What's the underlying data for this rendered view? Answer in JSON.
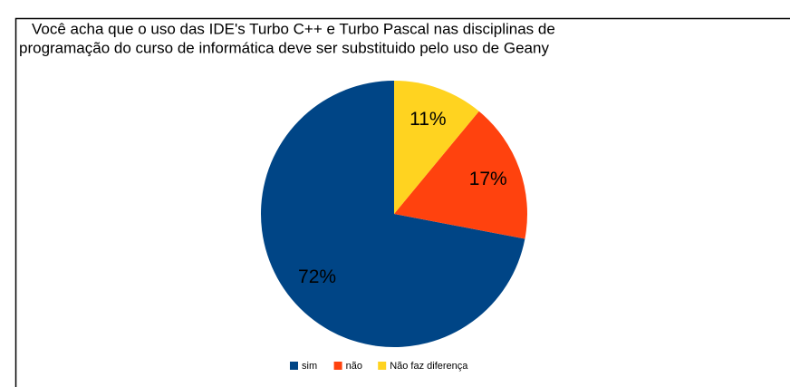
{
  "chart_data": {
    "type": "pie",
    "title": [
      "Você acha que o uso das IDE's Turbo C++ e Turbo Pascal nas disciplinas de",
      "programação do curso de informática deve ser substituido pelo uso de Geany"
    ],
    "categories": [
      "sim",
      "não",
      "Não faz diferença"
    ],
    "values": [
      72,
      17,
      11
    ],
    "value_labels": [
      "72%",
      "17%",
      "11%"
    ],
    "colors": [
      "#004586",
      "#ff420e",
      "#ffd320"
    ],
    "legend": "bottom"
  }
}
